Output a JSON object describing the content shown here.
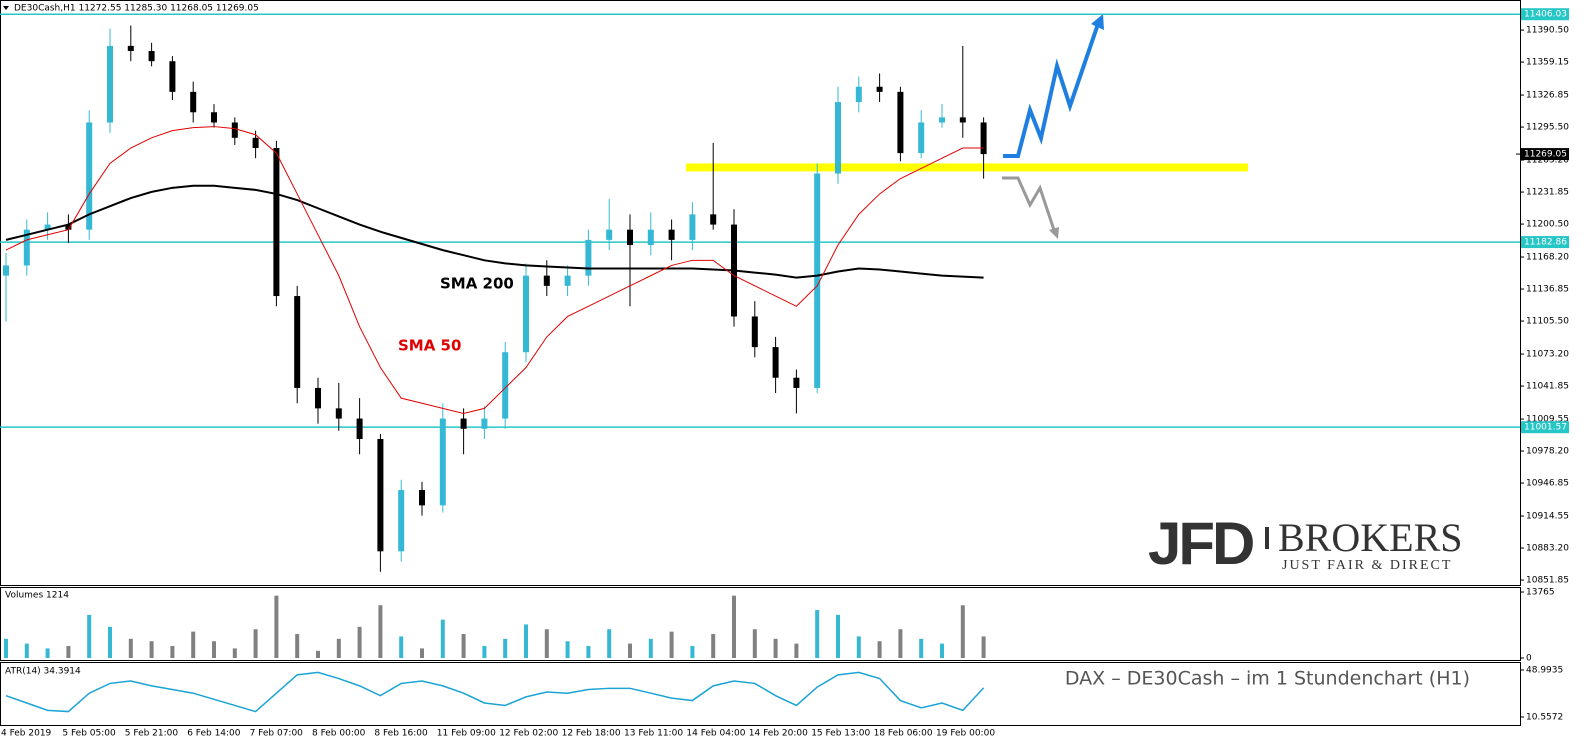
{
  "chart_data": [
    {
      "type": "candlestick",
      "title": "DE30Cash,H1  11272.55 11285.30 11268.05 11269.05",
      "categories": [
        "4 Feb 2019",
        null,
        null,
        "5 Feb 05:00",
        null,
        null,
        "5 Feb 21:00",
        null,
        null,
        "6 Feb 14:00",
        null,
        null,
        "7 Feb 07:00",
        null,
        null,
        "8 Feb 00:00",
        null,
        null,
        "8 Feb 16:00",
        null,
        null,
        "11 Feb 09:00",
        null,
        null,
        "12 Feb 02:00",
        null,
        null,
        "12 Feb 18:00",
        null,
        null,
        "13 Feb 11:00",
        null,
        null,
        "14 Feb 04:00",
        null,
        null,
        "14 Feb 20:00",
        null,
        null,
        "15 Feb 13:00",
        null,
        null,
        "18 Feb 06:00",
        null,
        null,
        "19 Feb 00:00",
        null,
        null
      ],
      "open": [
        11150,
        11160,
        11195,
        11200,
        11195,
        11300,
        11375,
        11370,
        11360,
        11330,
        11310,
        11300,
        11285,
        11275,
        11130,
        11040,
        11020,
        11010,
        10990,
        10880,
        10940,
        10925,
        11010,
        11000,
        11010,
        11075,
        11150,
        11140,
        11150,
        11185,
        11195,
        11180,
        11195,
        11185,
        11210,
        11200,
        11110,
        11080,
        11050,
        11040,
        11250,
        11320,
        11335,
        11330,
        11270,
        11300,
        11305,
        11300
      ],
      "high": [
        11172,
        11205,
        11212,
        11210,
        11312,
        11392,
        11395,
        11378,
        11365,
        11340,
        11318,
        11305,
        11292,
        11282,
        11140,
        11050,
        11045,
        11030,
        10995,
        10950,
        10948,
        11025,
        11020,
        11022,
        11085,
        11162,
        11165,
        11160,
        11195,
        11225,
        11210,
        11212,
        11205,
        11222,
        11280,
        11215,
        11125,
        11090,
        11058,
        11260,
        11335,
        11345,
        11348,
        11335,
        11312,
        11318,
        11375,
        11305
      ],
      "low": [
        11105,
        11150,
        11185,
        11182,
        11185,
        11290,
        11360,
        11355,
        11322,
        11300,
        11295,
        11278,
        11265,
        11120,
        11025,
        11005,
        10998,
        10975,
        10860,
        10870,
        10915,
        10918,
        10975,
        10990,
        11000,
        11065,
        11130,
        11130,
        11140,
        11175,
        11120,
        11170,
        11165,
        11175,
        11195,
        11100,
        11070,
        11035,
        11015,
        11035,
        11240,
        11310,
        11320,
        11262,
        11265,
        11295,
        11285,
        11245
      ],
      "close": [
        11160,
        11195,
        11200,
        11195,
        11300,
        11375,
        11370,
        11360,
        11330,
        11310,
        11300,
        11285,
        11275,
        11130,
        11040,
        11020,
        11010,
        10990,
        10880,
        10940,
        10925,
        11010,
        11000,
        11010,
        11075,
        11150,
        11140,
        11150,
        11185,
        11195,
        11180,
        11195,
        11185,
        11210,
        11200,
        11110,
        11080,
        11050,
        11040,
        11250,
        11320,
        11335,
        11330,
        11270,
        11300,
        11305,
        11300,
        11269.05
      ],
      "up_color": "#35b8d4",
      "down_color": "#000000",
      "lines": [
        {
          "name": "SMA 200",
          "color": "#000000",
          "values": [
            11185,
            11190,
            11195,
            11200,
            11210,
            11218,
            11226,
            11232,
            11236,
            11238,
            11238,
            11236,
            11234,
            11230,
            11224,
            11216,
            11208,
            11200,
            11193,
            11187,
            11181,
            11175,
            11170,
            11165,
            11162,
            11160,
            11159,
            11158,
            11157,
            11157,
            11157,
            11157,
            11157,
            11157,
            11156,
            11155,
            11153,
            11151,
            11148,
            11150,
            11154,
            11157,
            11156,
            11154,
            11152,
            11150,
            11149,
            11148
          ]
        },
        {
          "name": "SMA 50",
          "color": "#e00000",
          "values": [
            11175,
            11185,
            11190,
            11195,
            11230,
            11260,
            11275,
            11285,
            11292,
            11295,
            11296,
            11294,
            11288,
            11270,
            11230,
            11190,
            11150,
            11100,
            11060,
            11030,
            11025,
            11020,
            11015,
            11020,
            11040,
            11060,
            11090,
            11110,
            11120,
            11130,
            11140,
            11150,
            11160,
            11165,
            11165,
            11150,
            11140,
            11130,
            11120,
            11140,
            11180,
            11210,
            11230,
            11245,
            11255,
            11265,
            11275,
            11275
          ]
        }
      ],
      "levels": [
        11406.03,
        11182.86,
        11001.57
      ],
      "level_color": "#26c6c6",
      "last_price": {
        "value": 11269.05,
        "label": "11269.05"
      },
      "zone": 11256,
      "zone_color": "#ffff00",
      "ylim": [
        10847,
        11418
      ],
      "yticks": [
        {
          "value": 11390.5,
          "label": "11390.50"
        },
        11359.15,
        11326.85,
        {
          "value": 11295.5,
          "label": "11295.50"
        },
        {
          "value": 11263.2,
          "label": "11263.20"
        },
        11231.85,
        {
          "value": 11200.5,
          "label": "11200.50"
        },
        {
          "value": 11168.2,
          "label": "11168.20"
        },
        11136.85,
        {
          "value": 11105.5,
          "label": "11105.50"
        },
        {
          "value": 11073.2,
          "label": "11073.20"
        },
        11041.85,
        11009.55,
        {
          "value": 10978.2,
          "label": "10978.20"
        },
        10946.85,
        10914.55,
        {
          "value": 10883.2,
          "label": "10883.20"
        },
        10851.85
      ],
      "caption": "DAX – DE30Cash – im  1 Stundenchart (H1)",
      "watermark": {
        "brand": "JFD",
        "brand2": "BROKERS",
        "tagline": "JUST FAIR & DIRECT"
      }
    },
    {
      "type": "bar",
      "title": "Volumes 1214",
      "values": [
        4000,
        3000,
        2000,
        2500,
        9000,
        6500,
        4000,
        3500,
        2500,
        5500,
        3500,
        2000,
        6000,
        13000,
        5000,
        1500,
        4000,
        6500,
        11000,
        4500,
        2000,
        8000,
        5000,
        2500,
        4000,
        7000,
        6000,
        3500,
        2500,
        6000,
        3000,
        4000,
        5500,
        2500,
        5000,
        13000,
        6000,
        4000,
        3000,
        10000,
        9000,
        4500,
        3500,
        6000,
        4000,
        3000,
        11000,
        4500
      ],
      "up_color": "#35b8d4",
      "down_color": "#808080",
      "ylim": [
        0,
        14600
      ],
      "yticks": [
        0,
        13765
      ]
    },
    {
      "type": "line",
      "title": "ATR(14) 34.3914",
      "values": [
        28,
        22,
        16,
        15,
        30,
        38,
        40,
        36,
        33,
        30,
        25,
        20,
        15,
        30,
        45,
        47,
        42,
        36,
        28,
        38,
        40,
        36,
        30,
        22,
        20,
        27,
        31,
        30,
        33,
        34,
        34,
        30,
        26,
        24,
        36,
        40,
        38,
        28,
        20,
        35,
        45,
        47,
        42,
        24,
        18,
        22,
        16,
        34.39
      ],
      "color": "#1aa3d4",
      "ylim": [
        4.0,
        54.7
      ],
      "yticks": [
        10.5572,
        48.9935
      ]
    }
  ]
}
